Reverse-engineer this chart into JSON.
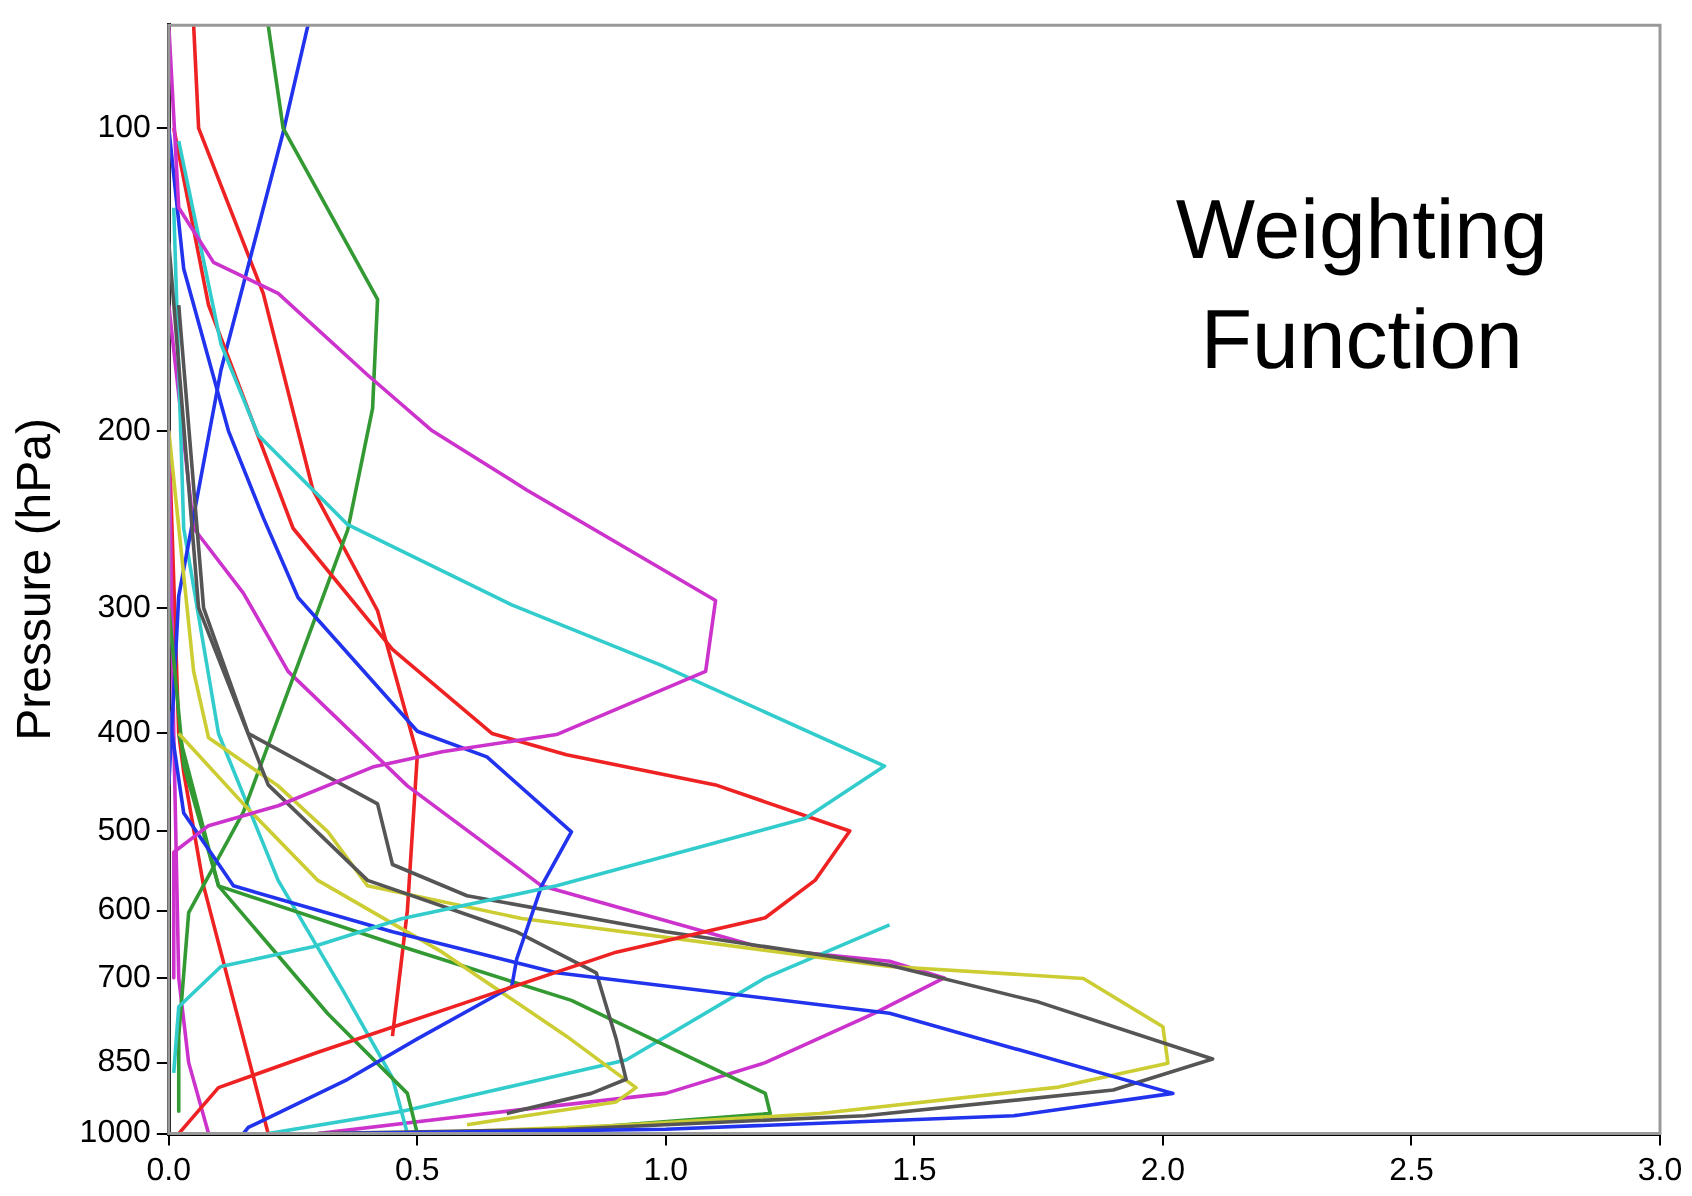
{
  "chart_data": {
    "type": "line",
    "ylabel": "Pressure (hPa)",
    "annotations": [
      "Weighting Function"
    ],
    "log": "y",
    "marker": "none",
    "grid": false,
    "legend": false,
    "xlim": [
      0,
      3
    ],
    "xticks": [
      {
        "value": 0,
        "label": "0.0"
      },
      {
        "value": 0.5,
        "label": "0.5"
      },
      {
        "value": 1,
        "label": "1.0"
      },
      {
        "value": 1.5,
        "label": "1.5"
      },
      {
        "value": 2,
        "label": "2.0"
      },
      {
        "value": 2.5,
        "label": "2.5"
      },
      {
        "value": 3,
        "label": "3.0"
      }
    ],
    "ylim": [
      1000,
      79
    ],
    "yticks": [
      100,
      200,
      300,
      400,
      500,
      600,
      700,
      850,
      1000
    ],
    "series": [
      {
        "color": "#cc33cc",
        "x": [
          0,
          0.02,
          0.09,
          0.22,
          0.4,
          0.53,
          0.72,
          1.1,
          1.08,
          0.78,
          0.55,
          0.41,
          0.22,
          0.08,
          0.01,
          0.01
        ],
        "values": [
          79,
          120,
          136,
          146,
          176,
          200,
          229,
          295,
          347,
          401,
          417,
          432,
          472,
          494,
          525,
          700
        ]
      },
      {
        "color": "#33cccc",
        "x": [
          0.02,
          0.105,
          0.18,
          0.36,
          0.69,
          0.99,
          1.44,
          1.28,
          0.78,
          0.47,
          0.29,
          0.105,
          0.02,
          0.01
        ],
        "values": [
          103,
          164,
          202,
          248,
          298,
          342,
          431,
          486,
          567,
          611,
          652,
          682,
          748,
          870
        ]
      },
      {
        "color": "#ee2222",
        "x": [
          0.01,
          0.08,
          0.25,
          0.45,
          0.65,
          0.8,
          1.1,
          1.37,
          1.3,
          1.2,
          0.9,
          0.6,
          0.3,
          0.1,
          0.02
        ],
        "values": [
          100,
          150,
          250,
          330,
          400,
          420,
          450,
          500,
          560,
          610,
          660,
          740,
          830,
          900,
          1000
        ]
      },
      {
        "color": "#2233ee",
        "x": [
          0,
          0.03,
          0.12,
          0.19,
          0.26,
          0.5,
          0.64,
          0.81,
          0.75,
          0.7,
          0.69,
          0.5,
          0.36,
          0.16,
          0.15
        ],
        "values": [
          100,
          138,
          200,
          244,
          293,
          398,
          422,
          501,
          567,
          670,
          714,
          805,
          883,
          986,
          1000
        ]
      },
      {
        "color": "#2233ee",
        "x": [
          0,
          0.03,
          0.13,
          0.45,
          0.78,
          1.45,
          2.02,
          1.7,
          1,
          0.35
        ],
        "values": [
          380,
          480,
          567,
          630,
          692,
          759,
          912,
          960,
          990,
          1000
        ]
      },
      {
        "color": "#555555",
        "x": [
          0.02,
          0.07,
          0.16,
          0.42,
          0.45,
          0.6,
          1,
          1.45,
          1.75,
          2.1,
          1.9,
          1.4,
          0.8,
          0.3
        ],
        "values": [
          150,
          300,
          400,
          470,
          540,
          580,
          630,
          680,
          740,
          843,
          905,
          960,
          990,
          1000
        ]
      },
      {
        "color": "#555555",
        "x": [
          0,
          0.06,
          0.2,
          0.4,
          0.7,
          0.86,
          0.9,
          0.92,
          0.85,
          0.68
        ],
        "values": [
          130,
          300,
          450,
          560,
          630,
          692,
          805,
          883,
          912,
          955
        ]
      },
      {
        "color": "#cccc33",
        "x": [
          0,
          0.05,
          0.08,
          0.22,
          0.32,
          0.4,
          0.71,
          1.45,
          1.84,
          2,
          2.01,
          1.79,
          1.31,
          0.9,
          0.48
        ],
        "values": [
          200,
          347,
          404,
          451,
          501,
          567,
          611,
          682,
          701,
          783,
          851,
          899,
          955,
          982,
          1000
        ]
      },
      {
        "color": "#cccc33",
        "x": [
          0.02,
          0.15,
          0.3,
          0.55,
          0.8,
          0.94,
          0.9,
          0.6
        ],
        "values": [
          400,
          470,
          560,
          660,
          800,
          900,
          930,
          980
        ]
      },
      {
        "color": "#339933",
        "x": [
          0,
          0.03,
          0.1,
          0.47,
          0.81,
          1.2,
          1.21,
          0.8,
          0.4
        ],
        "values": [
          300,
          430,
          567,
          652,
          737,
          912,
          955,
          990,
          1000
        ]
      },
      {
        "color": "#339933",
        "x": [
          0.2,
          0.23,
          0.42,
          0.41,
          0.36,
          0.27,
          0.15,
          0.04,
          0.02,
          0.02
        ],
        "values": [
          79,
          100,
          148,
          190,
          251,
          331,
          479,
          603,
          800,
          950
        ]
      },
      {
        "color": "#339933",
        "x": [
          0.02,
          0.1,
          0.32,
          0.48,
          0.5
        ],
        "values": [
          400,
          567,
          760,
          912,
          1000
        ]
      },
      {
        "color": "#2233ee",
        "x": [
          0,
          0.02,
          0.105,
          0.23,
          0.28
        ],
        "values": [
          450,
          292,
          174,
          101,
          79
        ]
      },
      {
        "color": "#33cccc",
        "x": [
          0.2,
          0.47,
          0.92,
          1.2,
          1.45
        ],
        "values": [
          1000,
          950,
          845,
          700,
          620
        ]
      },
      {
        "color": "#33cccc",
        "x": [
          0.01,
          0.03,
          0.1,
          0.22,
          0.35,
          0.45,
          0.48
        ],
        "values": [
          120,
          250,
          400,
          560,
          720,
          880,
          1000
        ]
      },
      {
        "color": "#cc33cc",
        "x": [
          0,
          0.05,
          0.15,
          0.24,
          0.48,
          0.75,
          1.2,
          1.45,
          1.56,
          1.42,
          1.2,
          1,
          0.64,
          0.3
        ],
        "values": [
          150,
          250,
          290,
          347,
          451,
          567,
          655,
          674,
          700,
          759,
          850,
          912,
          955,
          1000
        ]
      },
      {
        "color": "#cc33cc",
        "x": [
          0,
          0.01,
          0.02,
          0.04,
          0.08
        ],
        "values": [
          200,
          400,
          700,
          850,
          1000
        ]
      },
      {
        "color": "#ee2222",
        "x": [
          0.05,
          0.06,
          0.19,
          0.29,
          0.42,
          0.5,
          0.48,
          0.45
        ],
        "values": [
          79,
          100,
          146,
          229,
          302,
          420,
          600,
          800
        ]
      },
      {
        "color": "#ee2222",
        "x": [
          0,
          0.02,
          0.03,
          0.07,
          0.2
        ],
        "values": [
          200,
          400,
          437,
          567,
          1000
        ]
      }
    ]
  }
}
